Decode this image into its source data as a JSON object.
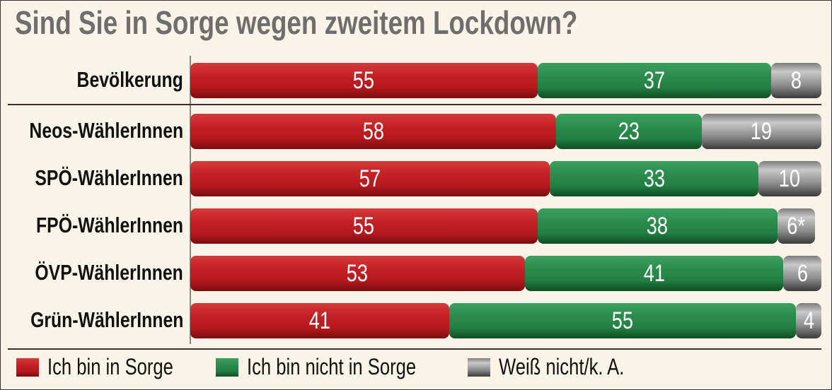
{
  "chart_data": {
    "type": "bar",
    "stacked": true,
    "orientation": "horizontal",
    "title": "Sind Sie in Sorge wegen zweitem Lockdown?",
    "categories": [
      "Bevölkerung",
      "Neos-WählerInnen",
      "SPÖ-WählerInnen",
      "FPÖ-WählerInnen",
      "ÖVP-WählerInnen",
      "Grün-WählerInnen"
    ],
    "series": [
      {
        "name": "Ich bin in Sorge",
        "color": "#c21f24",
        "values": [
          55,
          58,
          57,
          55,
          53,
          41
        ],
        "labels": [
          "55",
          "58",
          "57",
          "55",
          "53",
          "41"
        ]
      },
      {
        "name": "Ich bin nicht in Sorge",
        "color": "#2a8b4c",
        "values": [
          37,
          23,
          33,
          38,
          41,
          55
        ],
        "labels": [
          "37",
          "23",
          "33",
          "38",
          "41",
          "55"
        ]
      },
      {
        "name": "Weiß nicht/k. A.",
        "color": "#8a8a8a",
        "values": [
          8,
          19,
          10,
          6,
          6,
          4
        ],
        "labels": [
          "8",
          "19",
          "10",
          "6*",
          "6",
          "4"
        ]
      }
    ],
    "xlim": [
      0,
      100
    ],
    "legend": "bottom",
    "grid": false
  }
}
